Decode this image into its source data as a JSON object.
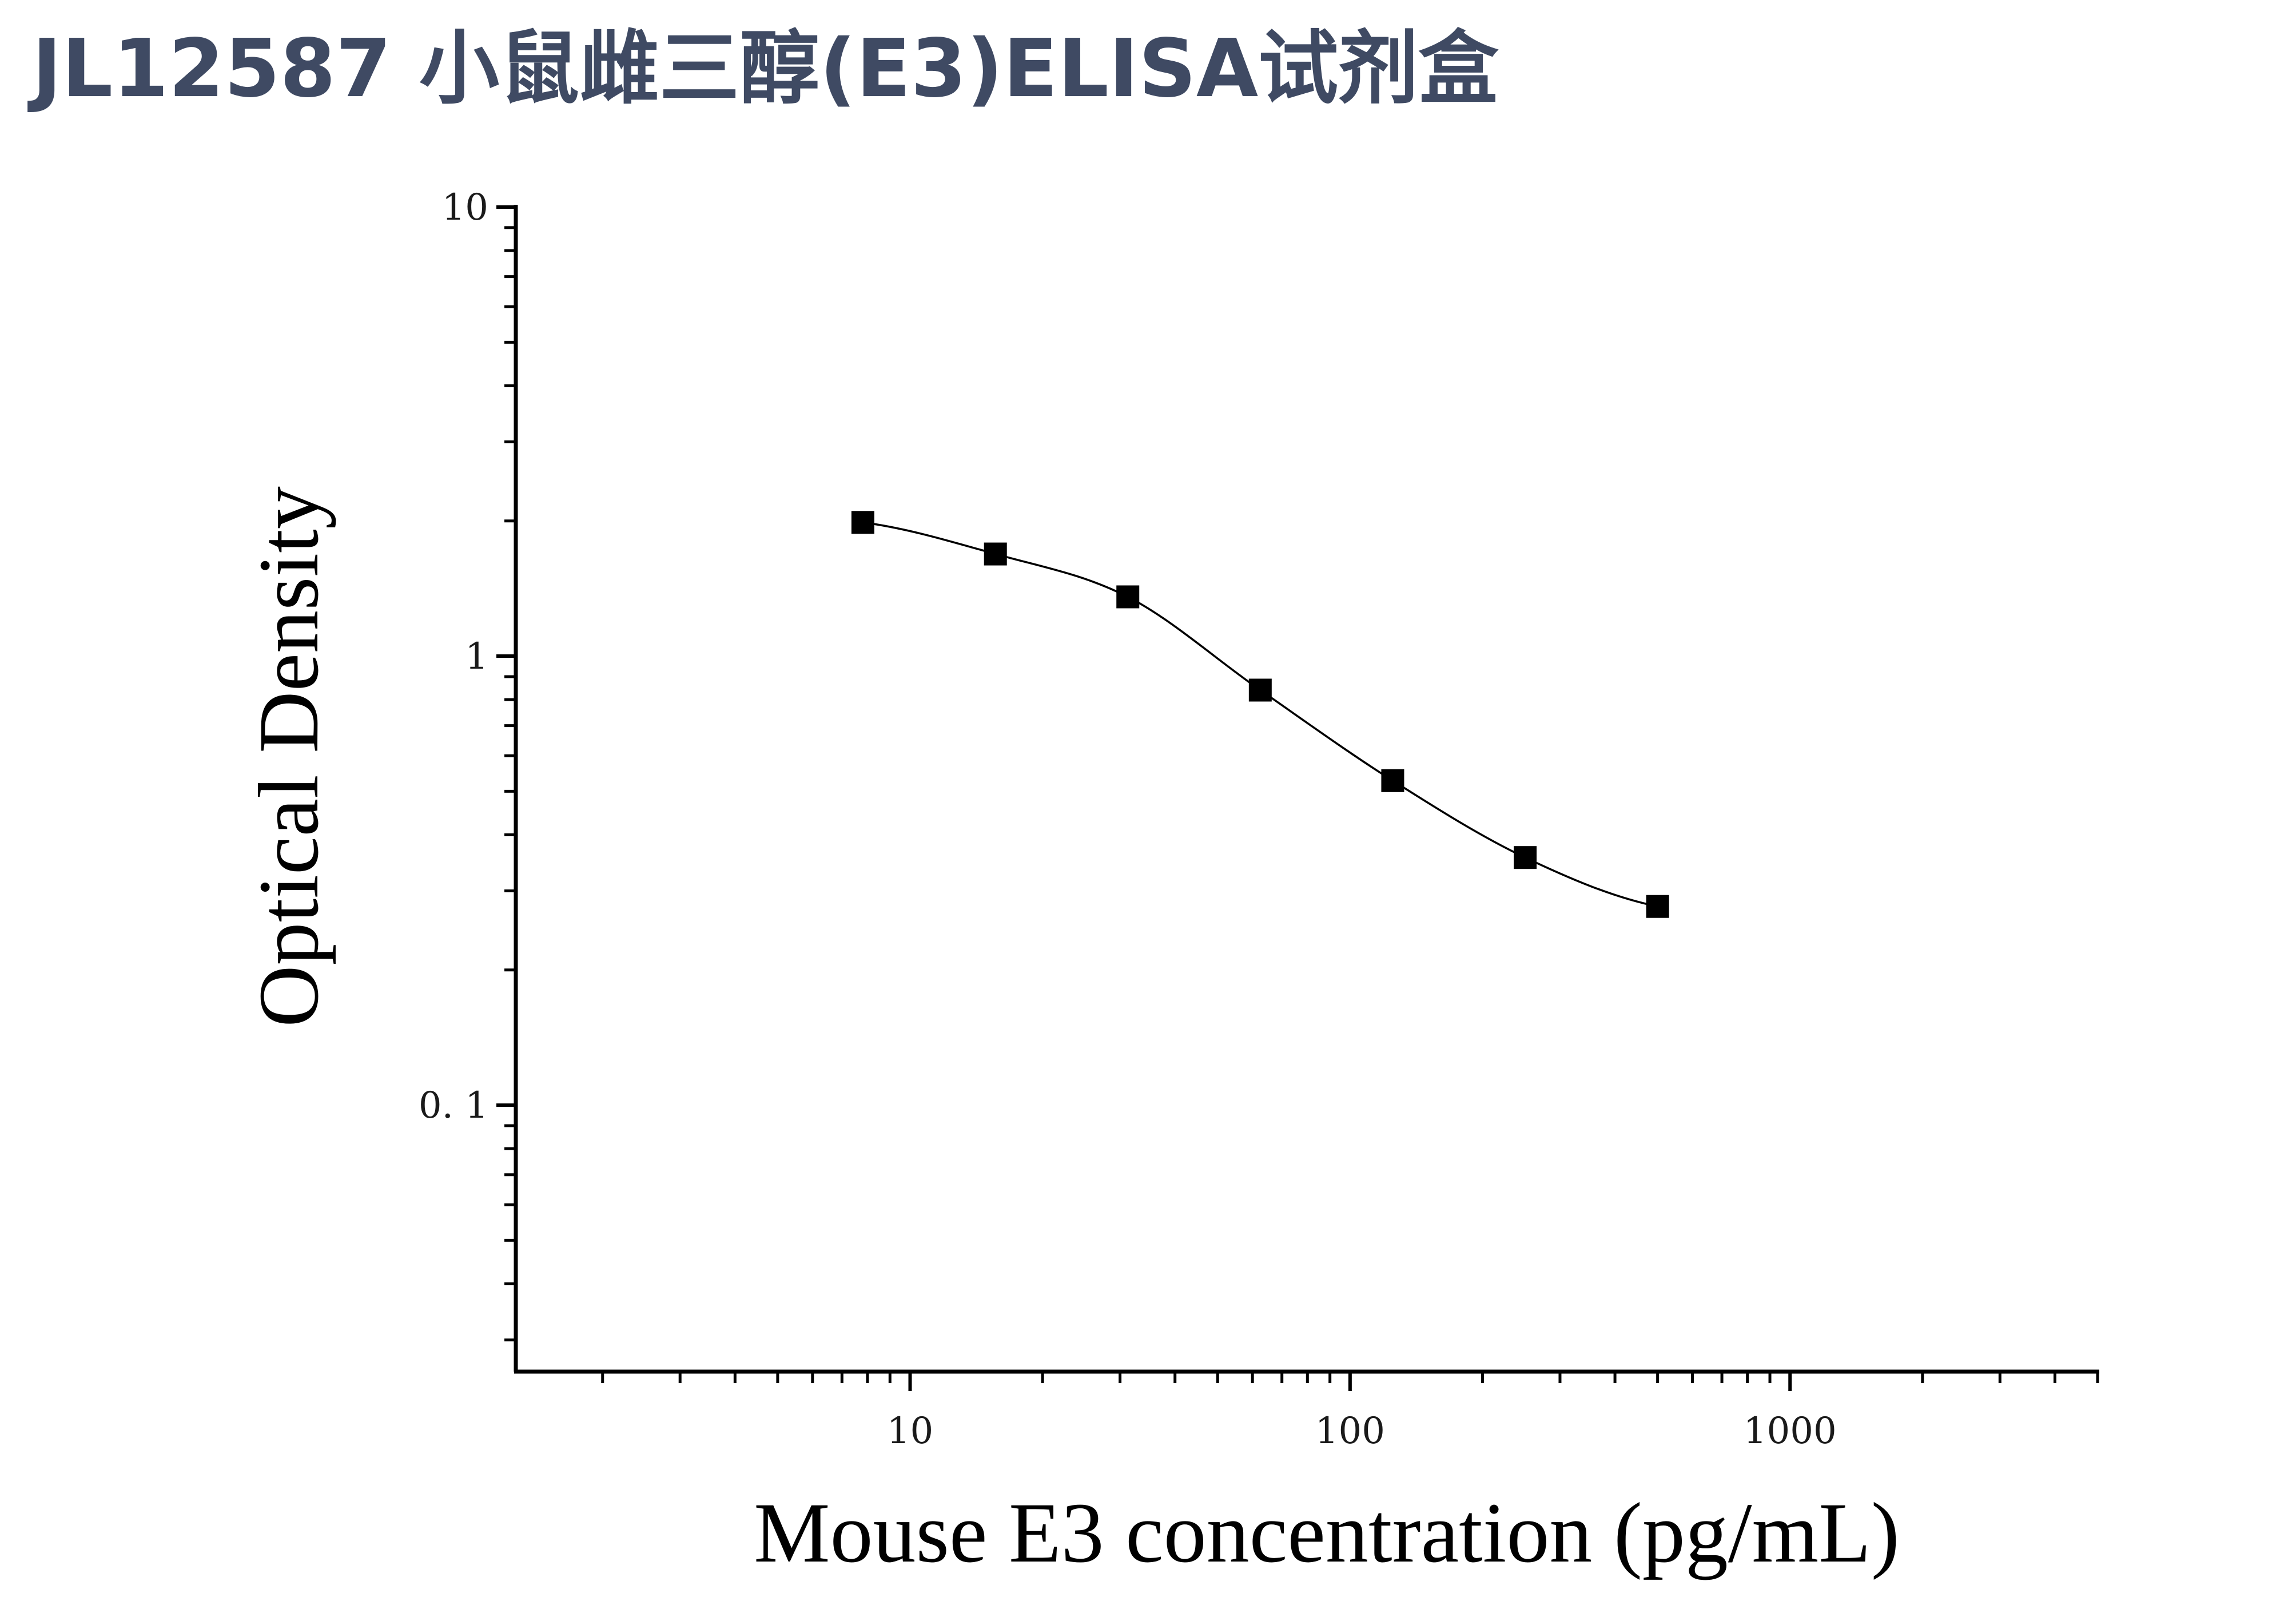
{
  "page": {
    "title": "JL12587 小鼠雌三醇(E3)ELISA试剂盒"
  },
  "chart_data": {
    "type": "scatter",
    "xlabel": "Mouse E3 concentration (pg/mL)",
    "ylabel": "Optical Density",
    "x_scale": "log",
    "y_scale": "log",
    "xlim": [
      1.27,
      5000
    ],
    "ylim": [
      0.0255,
      10
    ],
    "x_ticks": [
      {
        "value": 10,
        "label": "10"
      },
      {
        "value": 100,
        "label": "100"
      },
      {
        "value": 1000,
        "label": "1000"
      }
    ],
    "y_ticks": [
      {
        "value": 10,
        "label": "10"
      },
      {
        "value": 1,
        "label": "1"
      },
      {
        "value": 0.1,
        "label": "0. 1"
      }
    ],
    "grid": false,
    "legend": "none",
    "marker": "square",
    "fit": "four-parameter logistic curve through points",
    "x": [
      7.81,
      15.63,
      31.25,
      62.5,
      125,
      250,
      500
    ],
    "y": [
      1.985,
      1.688,
      1.355,
      0.84,
      0.528,
      0.356,
      0.277
    ],
    "colors": {
      "points": "#000000",
      "curve": "#000000",
      "title": "#3f4a63"
    }
  }
}
